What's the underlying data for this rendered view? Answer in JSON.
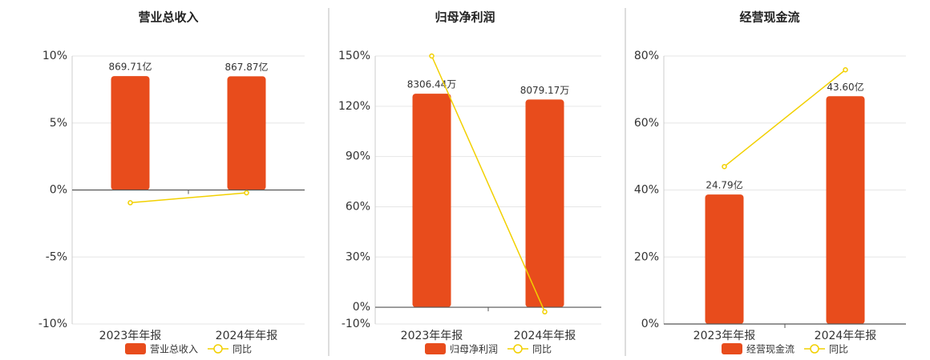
{
  "chart_data": [
    {
      "type": "bar",
      "title": "营业总收入",
      "categories": [
        "2023年年报",
        "2024年年报"
      ],
      "series": [
        {
          "name": "营业总收入",
          "color": "#e84c1c",
          "values": [
            869.71,
            867.87
          ],
          "value_labels": [
            "869.71亿",
            "867.87亿"
          ]
        },
        {
          "name": "同比",
          "type": "line",
          "color": "#f2d000",
          "values": [
            -0.95,
            -0.21
          ]
        }
      ],
      "ylim": [
        -10,
        10
      ],
      "yticks": [
        {
          "value": -10,
          "label": "-10%"
        },
        {
          "value": -5,
          "label": "-5%"
        },
        {
          "value": 0,
          "label": "0%"
        },
        {
          "value": 5,
          "label": "5%"
        },
        {
          "value": 10,
          "label": "10%"
        }
      ],
      "grid": true
    },
    {
      "type": "bar",
      "title": "归母净利润",
      "categories": [
        "2023年年报",
        "2024年年报"
      ],
      "series": [
        {
          "name": "归母净利润",
          "color": "#e84c1c",
          "values": [
            8306.44,
            8079.17
          ],
          "value_labels": [
            "8306.44万",
            "8079.17万"
          ]
        },
        {
          "name": "同比",
          "type": "line",
          "color": "#f2d000",
          "values": [
            150,
            -2.74
          ]
        }
      ],
      "ylim": [
        -10,
        150
      ],
      "yticks": [
        {
          "value": -10,
          "label": "-10%"
        },
        {
          "value": 0,
          "label": "0%"
        },
        {
          "value": 30,
          "label": "30%"
        },
        {
          "value": 60,
          "label": "60%"
        },
        {
          "value": 90,
          "label": "90%"
        },
        {
          "value": 120,
          "label": "120%"
        },
        {
          "value": 150,
          "label": "150%"
        }
      ],
      "grid": true
    },
    {
      "type": "bar",
      "title": "经营现金流",
      "categories": [
        "2023年年报",
        "2024年年报"
      ],
      "series": [
        {
          "name": "经营现金流",
          "color": "#e84c1c",
          "values": [
            24.79,
            43.6
          ],
          "value_labels": [
            "24.79亿",
            "43.60亿"
          ]
        },
        {
          "name": "同比",
          "type": "line",
          "color": "#f2d000",
          "values": [
            47.0,
            75.88
          ]
        }
      ],
      "ylim": [
        0,
        80
      ],
      "yticks": [
        {
          "value": 0,
          "label": "0%"
        },
        {
          "value": 20,
          "label": "20%"
        },
        {
          "value": 40,
          "label": "40%"
        },
        {
          "value": 60,
          "label": "60%"
        },
        {
          "value": 80,
          "label": "80%"
        }
      ],
      "grid": true
    }
  ]
}
